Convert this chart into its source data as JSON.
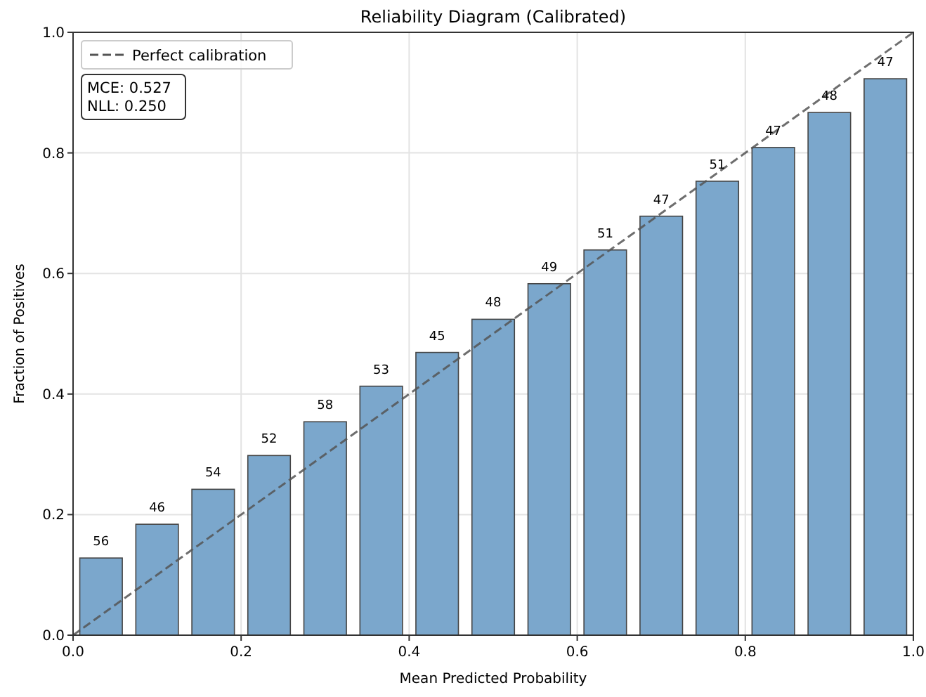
{
  "chart_data": {
    "type": "bar",
    "title": "Reliability Diagram (Calibrated)",
    "xlabel": "Mean Predicted Probability",
    "ylabel": "Fraction of Positives",
    "x": [
      0.0333,
      0.1,
      0.1667,
      0.2333,
      0.3,
      0.3667,
      0.4333,
      0.5,
      0.5667,
      0.6333,
      0.7,
      0.7667,
      0.8333,
      0.9,
      0.9667
    ],
    "series": [
      {
        "color": "#7ba7cc",
        "values": [
          0.128,
          0.184,
          0.242,
          0.298,
          0.354,
          0.413,
          0.469,
          0.524,
          0.583,
          0.639,
          0.695,
          0.753,
          0.809,
          0.867,
          0.923
        ]
      },
      {
        "type": "line",
        "name": "Perfect calibration",
        "color": "#555555",
        "line_style": "dashed",
        "x": [
          0,
          1
        ],
        "values": [
          0,
          1
        ]
      }
    ],
    "xlim": [
      0,
      1
    ],
    "ylim": [
      0,
      1
    ],
    "xticks": [
      {
        "value": 0,
        "label": "0.0"
      },
      {
        "value": 0.2,
        "label": "0.2"
      },
      {
        "value": 0.4,
        "label": "0.4"
      },
      {
        "value": 0.6,
        "label": "0.6"
      },
      {
        "value": 0.8,
        "label": "0.8"
      },
      {
        "value": 1,
        "label": "1.0"
      }
    ],
    "yticks": [
      {
        "value": 0,
        "label": "0.0"
      },
      {
        "value": 0.2,
        "label": "0.2"
      },
      {
        "value": 0.4,
        "label": "0.4"
      },
      {
        "value": 0.6,
        "label": "0.6"
      },
      {
        "value": 0.8,
        "label": "0.8"
      },
      {
        "value": 1,
        "label": "1.0"
      }
    ],
    "grid": true,
    "legend": "top left",
    "annotations": [
      "MCE: 0.527",
      "NLL: 0.250",
      {
        "text": "56",
        "x": 0.0333,
        "y": 0.128
      },
      {
        "text": "46",
        "x": 0.1,
        "y": 0.184
      },
      {
        "text": "54",
        "x": 0.1667,
        "y": 0.242
      },
      {
        "text": "52",
        "x": 0.2333,
        "y": 0.298
      },
      {
        "text": "58",
        "x": 0.3,
        "y": 0.354
      },
      {
        "text": "53",
        "x": 0.3667,
        "y": 0.413
      },
      {
        "text": "45",
        "x": 0.4333,
        "y": 0.469
      },
      {
        "text": "48",
        "x": 0.5,
        "y": 0.524
      },
      {
        "text": "49",
        "x": 0.5667,
        "y": 0.583
      },
      {
        "text": "51",
        "x": 0.6333,
        "y": 0.639
      },
      {
        "text": "47",
        "x": 0.7,
        "y": 0.695
      },
      {
        "text": "51",
        "x": 0.7667,
        "y": 0.753
      },
      {
        "text": "47",
        "x": 0.8333,
        "y": 0.809
      },
      {
        "text": "48",
        "x": 0.9,
        "y": 0.867
      },
      {
        "text": "47",
        "x": 0.9667,
        "y": 0.923
      }
    ]
  }
}
